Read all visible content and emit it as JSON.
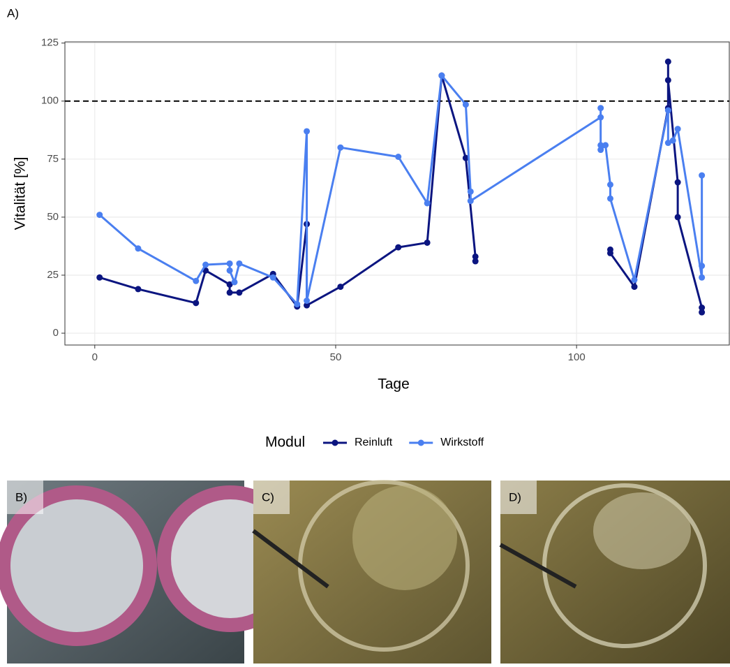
{
  "panel_labels": [
    "A)",
    "B)",
    "C)",
    "D)"
  ],
  "chart_data": {
    "type": "line",
    "x_label": "Tage",
    "y_label": "Vitalität [%]",
    "legend_title": "Modul",
    "legend_position": "bottom",
    "grid": true,
    "hline": 100,
    "xlim": [
      -6.2,
      131.7
    ],
    "ylim": [
      -5.1,
      125.5
    ],
    "xticks": [
      0,
      50,
      100
    ],
    "yticks": [
      0,
      25,
      50,
      75,
      100,
      125
    ],
    "series": [
      {
        "name": "Reinluft",
        "color": "#0b1580",
        "x": [
          1,
          9,
          21,
          23,
          28,
          28,
          30,
          37,
          42,
          44,
          44,
          51,
          63,
          69,
          72,
          77,
          79,
          79,
          null,
          107,
          107,
          112,
          119,
          119,
          119,
          121,
          121,
          126,
          126
        ],
        "values": [
          24,
          19,
          13,
          27,
          21,
          17.5,
          17.5,
          25.5,
          11.5,
          47,
          12,
          20,
          37,
          39,
          111,
          75.5,
          33,
          31,
          null,
          36,
          34.5,
          20,
          97,
          117,
          109,
          65,
          50,
          11,
          9
        ]
      },
      {
        "name": "Wirkstoff",
        "color": "#4a7ff0",
        "x": [
          1,
          9,
          21,
          23,
          28,
          28,
          29,
          30,
          37,
          42,
          44,
          44,
          51,
          63,
          69,
          72,
          77,
          78,
          78,
          105,
          105,
          105,
          105,
          106,
          107,
          107,
          112,
          119,
          119,
          120,
          121,
          126,
          126,
          126
        ],
        "values": [
          51,
          36.5,
          22.5,
          29.5,
          30,
          27,
          22,
          30,
          24,
          12.5,
          87,
          14,
          80,
          76,
          56,
          111,
          98.5,
          61,
          57,
          93,
          97,
          81,
          79,
          81,
          64,
          58,
          23,
          96,
          82,
          83,
          88,
          24,
          29,
          68
        ]
      }
    ]
  }
}
